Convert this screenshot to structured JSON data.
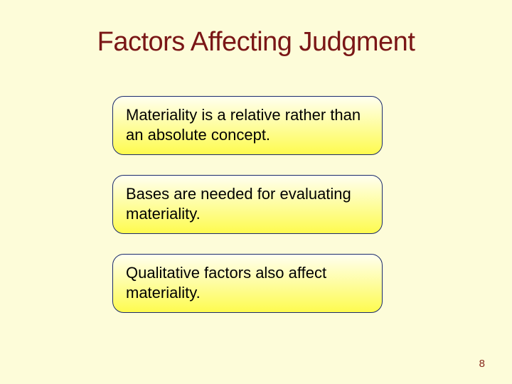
{
  "background_color": "#fdfcd9",
  "title": {
    "text": "Factors Affecting Judgment",
    "color": "#7a1616",
    "fontsize": 38
  },
  "boxes": [
    {
      "text": "Materiality is a relative rather than an absolute concept."
    },
    {
      "text": "Bases are needed for evaluating materiality."
    },
    {
      "text": "Qualitative factors also affect materiality."
    }
  ],
  "box_style": {
    "gradient_top": "#fffff0",
    "gradient_bottom": "#fefb4f",
    "border_color": "#1a2a6b",
    "border_width": 1.5,
    "shadow_color": "#8993b3",
    "text_color": "#000000",
    "fontsize": 22
  },
  "page_number": {
    "text": "8",
    "color": "#88291e",
    "fontsize": 15
  }
}
